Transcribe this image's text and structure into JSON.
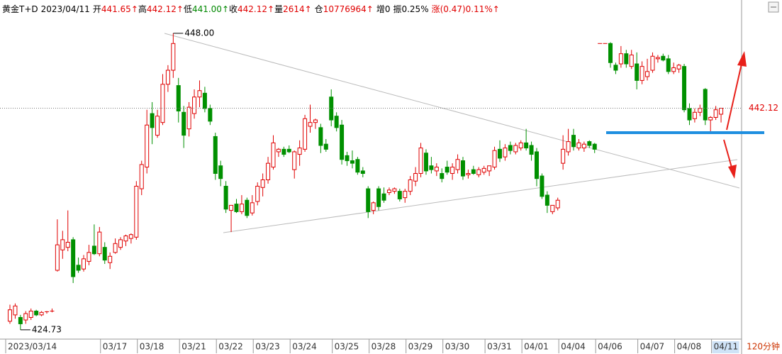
{
  "chart_data": {
    "type": "candlestick",
    "header": [
      {
        "text": "黄金T+D",
        "color": "#000000"
      },
      {
        "text": "2023/04/11",
        "color": "#000000"
      },
      {
        "text": "开",
        "color": "#000000"
      },
      {
        "text": "441.65↑",
        "color": "#e00000"
      },
      {
        "text": "高",
        "color": "#000000"
      },
      {
        "text": "442.12↑",
        "color": "#e00000"
      },
      {
        "text": "低",
        "color": "#000000"
      },
      {
        "text": "441.00↑",
        "color": "#008800"
      },
      {
        "text": "收",
        "color": "#000000"
      },
      {
        "text": "442.12↑",
        "color": "#e00000"
      },
      {
        "text": "量",
        "color": "#000000"
      },
      {
        "text": "2614↑",
        "color": "#e00000"
      },
      {
        "text": "仓",
        "color": "#000000"
      },
      {
        "text": "10776964↑",
        "color": "#e00000"
      },
      {
        "text": "增0",
        "color": "#000000"
      },
      {
        "text": "振0.25%",
        "color": "#000000"
      },
      {
        "text": "涨(0.47)0.11%↑",
        "color": "#e00000"
      }
    ],
    "period": "120分钟",
    "up_color": "#e00000",
    "down_color": "#009000",
    "ylim": [
      424.0,
      449.5
    ],
    "last_price": 442.12,
    "max_label": {
      "value": 448,
      "label": "448.00"
    },
    "min_label": 424.73,
    "categories": [
      "2023/03/14",
      null,
      null,
      null,
      null,
      null,
      null,
      null,
      null,
      null,
      null,
      null,
      null,
      null,
      null,
      null,
      null,
      null,
      "03/17",
      null,
      null,
      null,
      null,
      null,
      null,
      "03/18",
      null,
      null,
      null,
      null,
      null,
      null,
      null,
      "03/21",
      null,
      null,
      null,
      null,
      null,
      null,
      "03/22",
      null,
      null,
      null,
      null,
      null,
      null,
      "03/23",
      null,
      null,
      null,
      null,
      null,
      null,
      "03/24",
      null,
      null,
      null,
      null,
      null,
      null,
      null,
      "03/25",
      null,
      null,
      null,
      null,
      null,
      null,
      "03/28",
      null,
      null,
      null,
      null,
      null,
      null,
      "03/29",
      null,
      null,
      null,
      null,
      null,
      null,
      "03/30",
      null,
      null,
      null,
      null,
      null,
      null,
      null,
      "03/31",
      null,
      null,
      null,
      null,
      null,
      null,
      "04/01",
      null,
      null,
      null,
      null,
      null,
      null,
      "04/04",
      null,
      null,
      null,
      null,
      null,
      null,
      "04/06",
      null,
      null,
      null,
      null,
      null,
      null,
      null,
      "04/07",
      null,
      null,
      null,
      null,
      null,
      null,
      "04/08",
      null,
      null,
      null,
      null,
      null,
      null,
      "04/11",
      null
    ],
    "open": [
      425.4,
      425.9,
      425.7,
      425.5,
      425.7,
      426.2,
      425.9,
      426.1,
      426.2,
      429.4,
      431.0,
      431.2,
      431.8,
      429.8,
      429.5,
      430.1,
      431.3,
      430.7,
      431.2,
      430.0,
      430.8,
      431.2,
      431.7,
      431.9,
      432.0,
      435.8,
      437.5,
      441.7,
      440.0,
      441.0,
      444.0,
      445.1,
      443.9,
      441.8,
      440.5,
      441.7,
      443.0,
      443.3,
      442.1,
      439.9,
      437.6,
      436.0,
      434.1,
      434.6,
      434.0,
      434.9,
      433.9,
      434.8,
      435.9,
      436.5,
      437.5,
      438.7,
      438.9,
      438.9,
      437.3,
      438.5,
      438.9,
      440.7,
      441.0,
      440.6,
      439.3,
      443.0,
      441.5,
      440.8,
      438.4,
      438.0,
      438.1,
      437.2,
      435.8,
      434.1,
      435.8,
      435.4,
      435.5,
      435.6,
      435.6,
      435.1,
      435.6,
      436.4,
      437.0,
      438.6,
      437.6,
      437.2,
      437.0,
      437.5,
      437.0,
      437.3,
      438.0,
      436.9,
      437.3,
      436.9,
      437.1,
      437.2,
      437.5,
      438.9,
      438.3,
      439.2,
      438.7,
      439.0,
      439.4,
      439.2,
      438.7,
      436.8,
      435.3,
      434.0,
      434.3,
      437.8,
      438.7,
      440.0,
      439.0,
      439.0,
      439.5,
      439.3,
      447.2,
      447.2,
      447.2,
      445.5,
      445.6,
      446.4,
      445.4,
      445.6,
      444.3,
      444.6,
      445.1,
      446.0,
      446.2,
      446.0,
      445.0,
      445.2,
      445.4,
      442.1,
      441.3,
      441.8,
      443.6,
      441.2,
      441.4,
      441.65
    ],
    "high": [
      426.7,
      426.8,
      425.9,
      426.2,
      426.4,
      426.3,
      426.2,
      426.2,
      426.4,
      433.4,
      432.5,
      434.1,
      432.0,
      430.4,
      430.6,
      431.4,
      433.0,
      432.8,
      431.6,
      430.8,
      431.9,
      432.0,
      432.2,
      432.3,
      436.4,
      438.0,
      442.0,
      442.6,
      442.0,
      444.8,
      445.5,
      448.0,
      444.5,
      442.3,
      442.6,
      443.6,
      444.3,
      443.8,
      442.4,
      440.2,
      438.0,
      436.4,
      434.5,
      435.0,
      435.3,
      435.1,
      435.3,
      436.3,
      437.0,
      438.3,
      440.0,
      439.0,
      439.1,
      439.2,
      438.8,
      439.6,
      441.6,
      442.4,
      441.3,
      440.9,
      439.7,
      443.6,
      441.8,
      441.2,
      438.7,
      438.8,
      438.3,
      437.5,
      436.0,
      434.8,
      436.0,
      435.9,
      435.9,
      435.9,
      435.8,
      435.8,
      436.8,
      437.5,
      439.4,
      438.9,
      438.3,
      437.8,
      437.4,
      438.0,
      437.8,
      438.5,
      438.3,
      437.3,
      437.6,
      437.5,
      437.6,
      437.6,
      439.1,
      439.6,
      439.3,
      439.5,
      439.4,
      439.6,
      440.5,
      439.5,
      439.0,
      437.0,
      435.6,
      434.5,
      435.1,
      440.0,
      440.5,
      440.5,
      439.7,
      439.5,
      439.6,
      439.4,
      447.2,
      447.2,
      447.3,
      445.7,
      447.0,
      446.7,
      446.7,
      446.5,
      445.8,
      446.0,
      446.5,
      446.3,
      446.4,
      446.3,
      445.7,
      445.6,
      445.6,
      442.5,
      442.1,
      442.4,
      443.7,
      441.5,
      442.3,
      442.12
    ],
    "low": [
      425.2,
      425.6,
      424.73,
      425.2,
      425.5,
      425.8,
      425.8,
      426.0,
      426.1,
      429.3,
      430.3,
      430.9,
      428.4,
      429.2,
      429.3,
      429.8,
      430.6,
      430.5,
      429.9,
      429.5,
      430.7,
      431.0,
      431.3,
      431.5,
      431.8,
      435.3,
      437.0,
      439.3,
      439.8,
      440.8,
      443.4,
      444.5,
      441.0,
      439.0,
      439.9,
      441.3,
      442.2,
      441.8,
      440.8,
      436.5,
      436.0,
      433.9,
      432.4,
      433.9,
      433.8,
      433.5,
      433.7,
      434.5,
      435.2,
      436.2,
      437.3,
      438.3,
      438.3,
      438.6,
      436.6,
      437.6,
      438.7,
      440.2,
      440.5,
      438.6,
      438.7,
      440.7,
      440.3,
      437.7,
      437.6,
      437.4,
      436.9,
      436.7,
      433.5,
      433.8,
      434.1,
      434.7,
      435.3,
      435.4,
      434.8,
      434.7,
      435.3,
      436.0,
      436.7,
      436.9,
      437.0,
      436.8,
      436.3,
      436.9,
      436.5,
      437.0,
      436.5,
      436.6,
      436.9,
      436.7,
      436.9,
      436.8,
      437.3,
      437.9,
      438.0,
      438.5,
      438.5,
      438.8,
      438.8,
      438.0,
      436.0,
      435.0,
      433.9,
      433.8,
      434.1,
      437.3,
      438.4,
      438.8,
      438.8,
      438.7,
      439.0,
      438.6,
      447.2,
      447.2,
      445.3,
      444.8,
      445.3,
      445.3,
      445.2,
      443.6,
      444.0,
      444.3,
      444.9,
      445.7,
      445.8,
      444.8,
      444.8,
      444.9,
      441.8,
      440.8,
      441.0,
      441.5,
      440.8,
      440.1,
      441.2,
      441.0
    ],
    "close": [
      426.3,
      426.6,
      425.2,
      426.0,
      426.2,
      425.9,
      426.1,
      426.15,
      426.2,
      431.4,
      431.8,
      431.6,
      428.9,
      429.4,
      430.3,
      430.8,
      430.7,
      432.4,
      430.2,
      430.5,
      431.5,
      431.8,
      432.1,
      432.2,
      436.0,
      437.7,
      440.8,
      440.6,
      441.5,
      444.0,
      445.1,
      447.2,
      441.9,
      440.0,
      442.2,
      443.0,
      443.5,
      442.1,
      441.1,
      437.0,
      436.6,
      434.2,
      434.5,
      434.0,
      434.6,
      433.7,
      434.7,
      436.0,
      436.5,
      437.8,
      439.4,
      438.9,
      438.5,
      438.7,
      438.7,
      439.0,
      441.3,
      441.0,
      441.2,
      439.2,
      438.9,
      441.2,
      440.6,
      438.1,
      438.0,
      437.8,
      437.1,
      437.0,
      434.0,
      434.7,
      434.4,
      434.9,
      435.7,
      435.8,
      435.0,
      435.6,
      436.5,
      437.0,
      439.0,
      437.2,
      437.3,
      437.5,
      436.6,
      437.1,
      437.5,
      438.1,
      436.8,
      437.0,
      437.0,
      437.3,
      437.4,
      437.6,
      438.8,
      438.2,
      439.0,
      438.8,
      439.2,
      439.4,
      439.0,
      438.5,
      436.6,
      435.2,
      434.5,
      434.5,
      434.9,
      438.9,
      439.5,
      439.1,
      439.4,
      439.3,
      439.2,
      438.9,
      447.2,
      447.2,
      445.7,
      445.1,
      446.4,
      445.6,
      446.3,
      444.3,
      445.4,
      445.0,
      446.2,
      446.1,
      445.9,
      445.0,
      445.3,
      445.5,
      442.0,
      441.2,
      441.8,
      442.1,
      441.2,
      441.4,
      442.0,
      442.12
    ]
  }
}
